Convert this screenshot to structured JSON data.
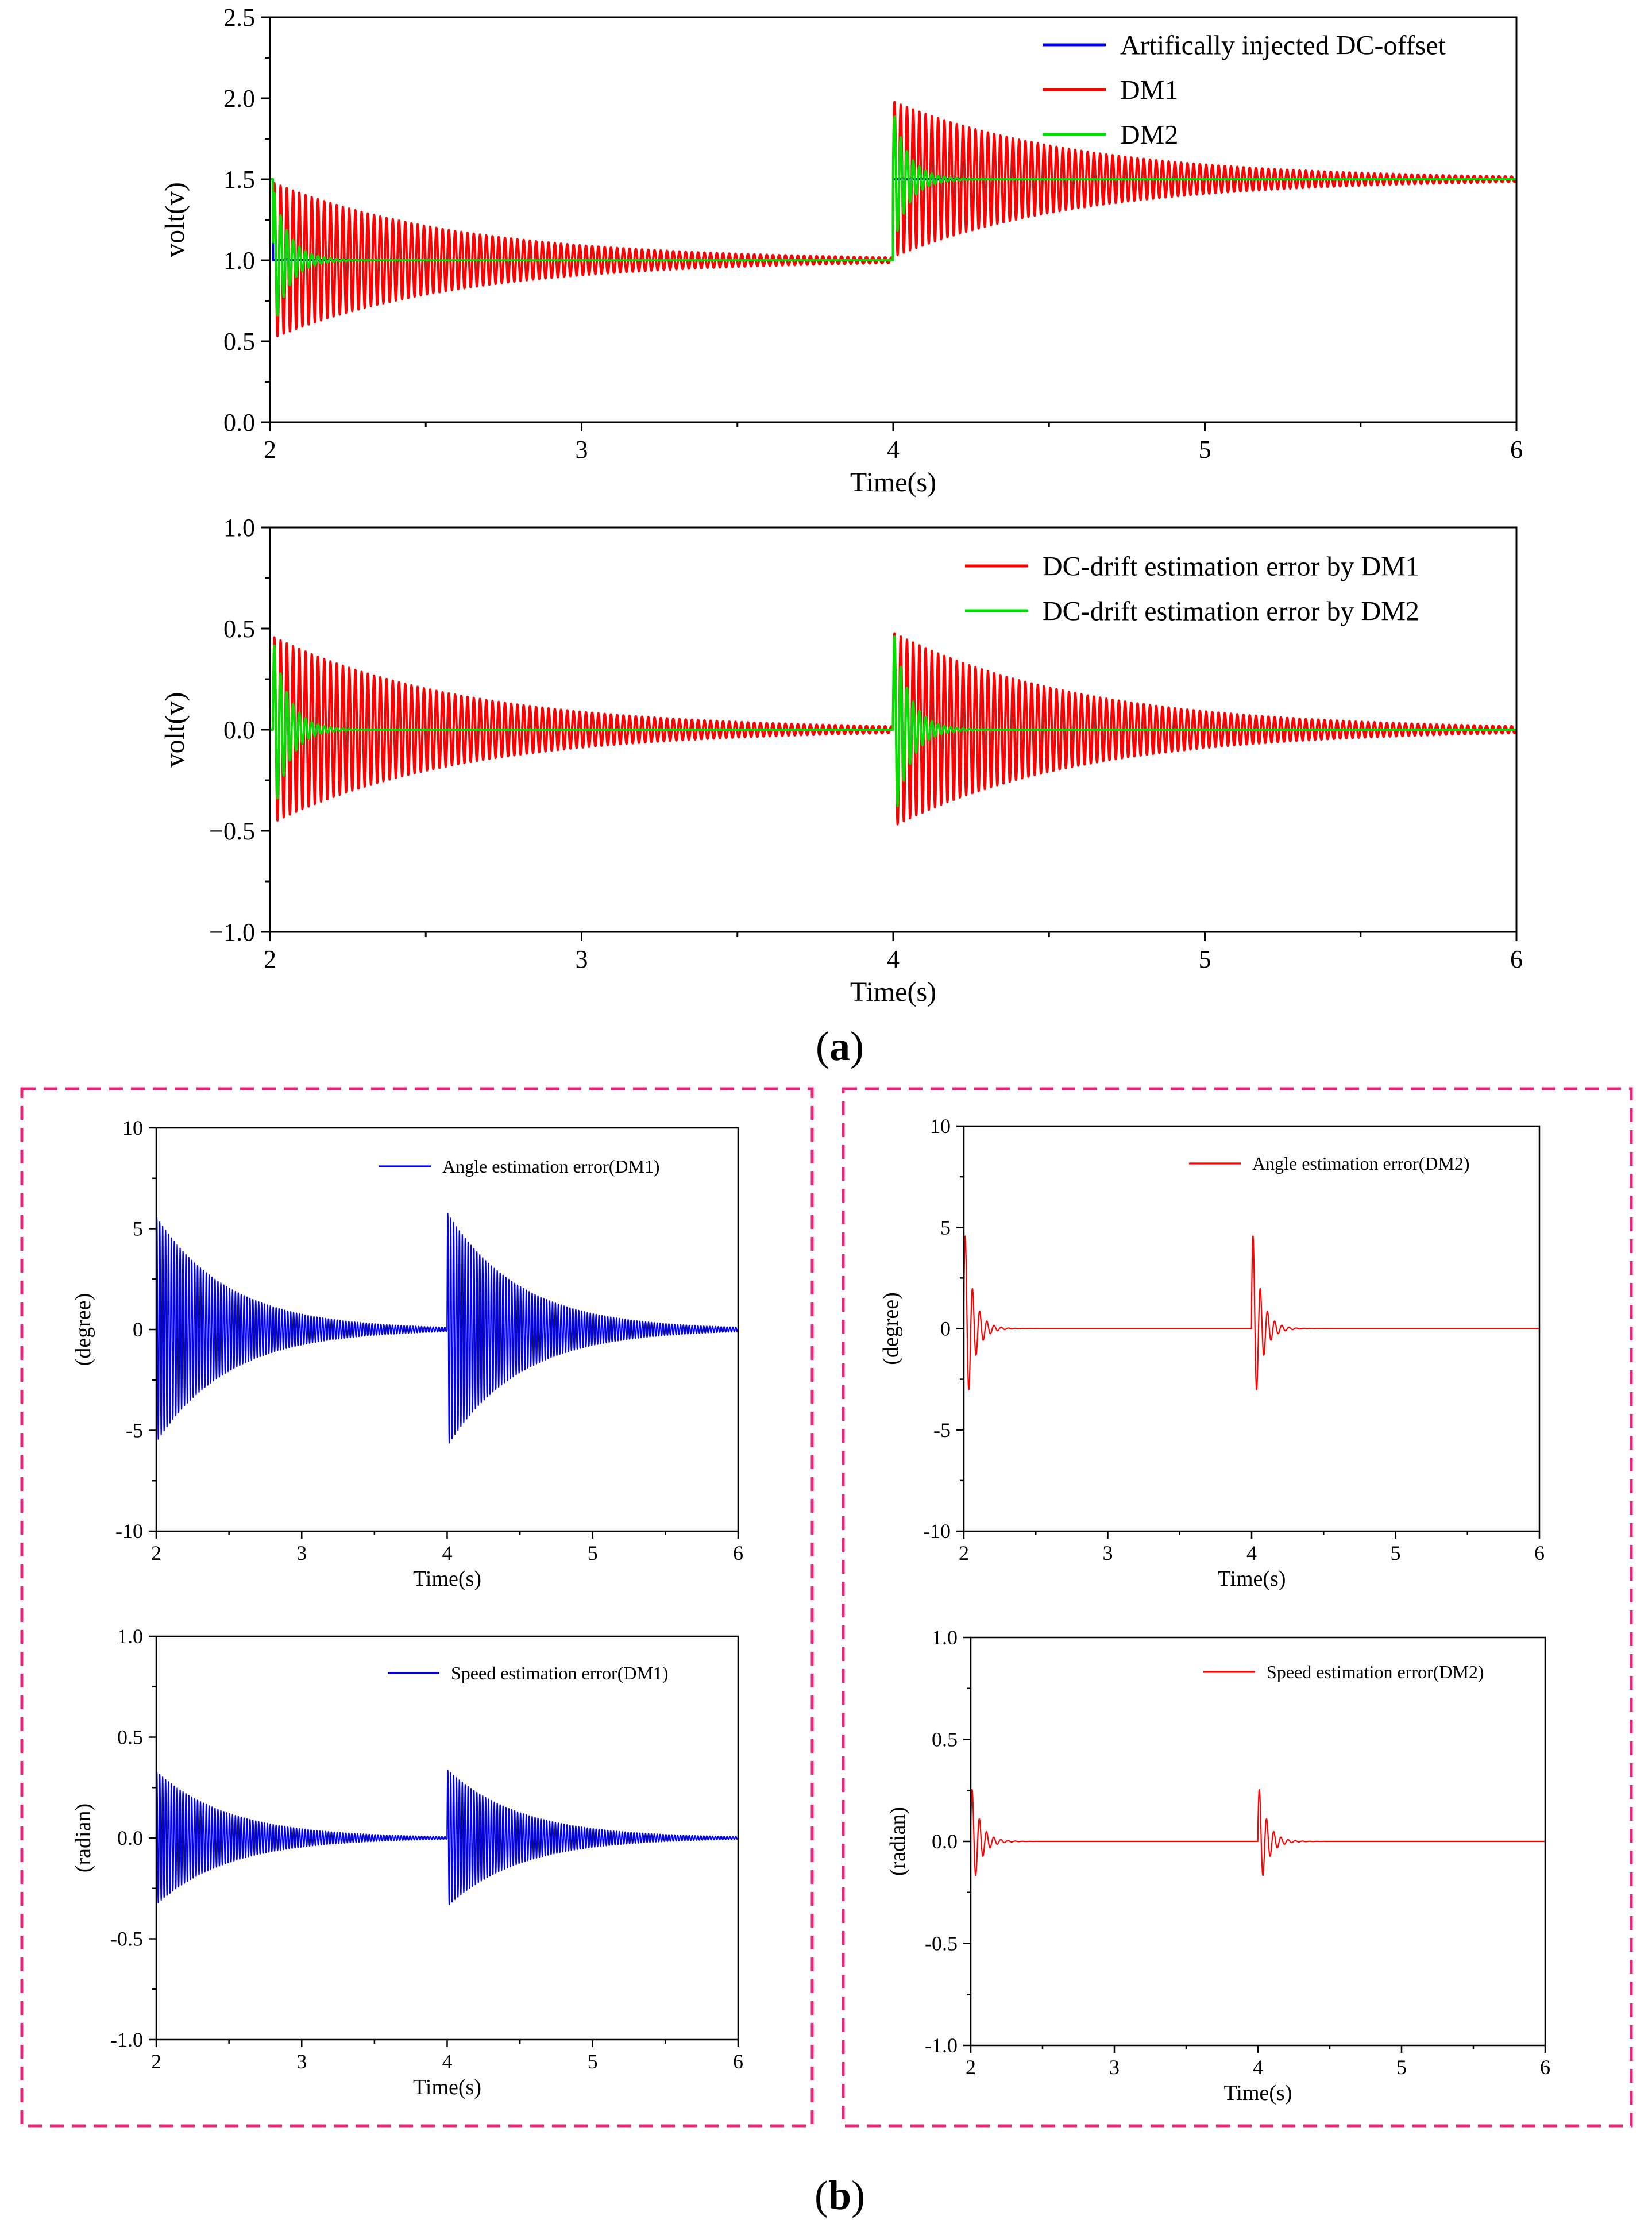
{
  "caption_a": {
    "open": "(",
    "letter": "a",
    "close": ")"
  },
  "caption_b": {
    "open": "(",
    "letter": "b",
    "close": ")"
  },
  "colors": {
    "blue": "#0000ee",
    "red": "#ff0000",
    "green": "#00e000",
    "panel_border": "#e8257a"
  },
  "chart_data": [
    {
      "type": "line",
      "id": "a1",
      "xlabel": "Time(s)",
      "ylabel": "volt(v)",
      "xlim": [
        2,
        6
      ],
      "ylim": [
        0,
        2.5
      ],
      "xticks": [
        2,
        3,
        4,
        5,
        6
      ],
      "yticks": [
        0.0,
        0.5,
        1.0,
        1.5,
        2.0,
        2.5
      ],
      "ytick_labels": [
        "0.0",
        "0.5",
        "1.0",
        "1.5",
        "2.0",
        "2.5"
      ],
      "legend_position": "top-right",
      "series": [
        {
          "name": "Artifically injected DC-offset",
          "color": "#0000ee",
          "model": {
            "kind": "step",
            "steps": [
              [
                2.0,
                1.5
              ],
              [
                2.01,
                1.0
              ],
              [
                4.0,
                1.5
              ]
            ]
          }
        },
        {
          "name": "DM1",
          "color": "#ff0000",
          "model": {
            "kind": "osc",
            "freq": 50,
            "events": [
              {
                "t": 2.01,
                "base_before": 1.5,
                "base": 1.0,
                "amp": 0.48,
                "tau": 0.6
              },
              {
                "t": 4.0,
                "base_before": 1.0,
                "base": 1.5,
                "amp": 0.48,
                "tau": 0.6
              }
            ]
          }
        },
        {
          "name": "DM2",
          "color": "#00e000",
          "model": {
            "kind": "osc",
            "freq": 50,
            "events": [
              {
                "t": 2.01,
                "base_before": 1.5,
                "base": 1.0,
                "amp": 0.45,
                "tau": 0.05
              },
              {
                "t": 4.0,
                "base_before": 1.0,
                "base": 1.5,
                "amp": 0.42,
                "tau": 0.05
              }
            ]
          }
        }
      ]
    },
    {
      "type": "line",
      "id": "a2",
      "xlabel": "Time(s)",
      "ylabel": "volt(v)",
      "xlim": [
        2,
        6
      ],
      "ylim": [
        -1.0,
        1.0
      ],
      "xticks": [
        2,
        3,
        4,
        5,
        6
      ],
      "yticks": [
        -1.0,
        -0.5,
        0.0,
        0.5,
        1.0
      ],
      "ytick_labels": [
        "−1.0",
        "−0.5",
        "0.0",
        "0.5",
        "1.0"
      ],
      "legend_position": "top-right",
      "series": [
        {
          "name": "DC-drift estimation error by DM1",
          "color": "#ff0000",
          "model": {
            "kind": "osc",
            "freq": 50,
            "events": [
              {
                "t": 2.01,
                "amp": 0.46,
                "tau": 0.6
              },
              {
                "t": 4.0,
                "amp": 0.48,
                "tau": 0.6
              }
            ]
          }
        },
        {
          "name": "DC-drift estimation error by DM2",
          "color": "#00e000",
          "model": {
            "kind": "osc",
            "freq": 50,
            "events": [
              {
                "t": 2.01,
                "amp": 0.45,
                "tau": 0.05
              },
              {
                "t": 4.0,
                "amp": 0.5,
                "tau": 0.05
              }
            ]
          }
        }
      ]
    },
    {
      "type": "line",
      "id": "b1",
      "xlabel": "Time(s)",
      "ylabel": "(degree)",
      "xlim": [
        2,
        6
      ],
      "ylim": [
        -10,
        10
      ],
      "xticks": [
        2,
        3,
        4,
        5,
        6
      ],
      "yticks": [
        -10,
        -5,
        0,
        5,
        10
      ],
      "ytick_labels": [
        "-10",
        "-5",
        "0",
        "5",
        "10"
      ],
      "legend_position": "top-right",
      "series": [
        {
          "name": "Angle estimation error(DM1)",
          "color": "#0000ee",
          "model": {
            "kind": "osc",
            "freq": 50,
            "events": [
              {
                "t": 2.0,
                "amp": 5.6,
                "tau": 0.5
              },
              {
                "t": 4.0,
                "amp": 5.8,
                "tau": 0.5
              }
            ]
          }
        }
      ]
    },
    {
      "type": "line",
      "id": "b2",
      "xlabel": "Time(s)",
      "ylabel": "(radian)",
      "xlim": [
        2,
        6
      ],
      "ylim": [
        -1.0,
        1.0
      ],
      "xticks": [
        2,
        3,
        4,
        5,
        6
      ],
      "yticks": [
        -1.0,
        -0.5,
        0.0,
        0.5,
        1.0
      ],
      "ytick_labels": [
        "-1.0",
        "-0.5",
        "0.0",
        "0.5",
        "1.0"
      ],
      "legend_position": "top-right",
      "series": [
        {
          "name": "Speed estimation error(DM1)",
          "color": "#0000ee",
          "model": {
            "kind": "osc",
            "freq": 50,
            "events": [
              {
                "t": 2.0,
                "amp": 0.33,
                "tau": 0.5
              },
              {
                "t": 4.0,
                "amp": 0.34,
                "tau": 0.5
              }
            ]
          }
        }
      ]
    },
    {
      "type": "line",
      "id": "b3",
      "xlabel": "Time(s)",
      "ylabel": "(degree)",
      "xlim": [
        2,
        6
      ],
      "ylim": [
        -10,
        10
      ],
      "xticks": [
        2,
        3,
        4,
        5,
        6
      ],
      "yticks": [
        -10,
        -5,
        0,
        5,
        10
      ],
      "ytick_labels": [
        "-10",
        "-5",
        "0",
        "5",
        "10"
      ],
      "legend_position": "top-right",
      "series": [
        {
          "name": "Angle estimation error(DM2)",
          "color": "#ff0000",
          "model": {
            "kind": "osc",
            "freq": 20,
            "events": [
              {
                "t": 2.0,
                "amp": 5.4,
                "tau": 0.06
              },
              {
                "t": 4.0,
                "amp": 5.4,
                "tau": 0.06
              }
            ]
          }
        }
      ]
    },
    {
      "type": "line",
      "id": "b4",
      "xlabel": "Time(s)",
      "ylabel": "(radian)",
      "xlim": [
        2,
        6
      ],
      "ylim": [
        -1.0,
        1.0
      ],
      "xticks": [
        2,
        3,
        4,
        5,
        6
      ],
      "yticks": [
        -1.0,
        -0.5,
        0.0,
        0.5,
        1.0
      ],
      "ytick_labels": [
        "-1.0",
        "-0.5",
        "0.0",
        "0.5",
        "1.0"
      ],
      "legend_position": "top-right",
      "series": [
        {
          "name": "Speed estimation error(DM2)",
          "color": "#ff0000",
          "model": {
            "kind": "osc",
            "freq": 20,
            "events": [
              {
                "t": 2.0,
                "amp": 0.3,
                "tau": 0.06
              },
              {
                "t": 4.0,
                "amp": 0.3,
                "tau": 0.06
              }
            ]
          }
        }
      ]
    }
  ]
}
